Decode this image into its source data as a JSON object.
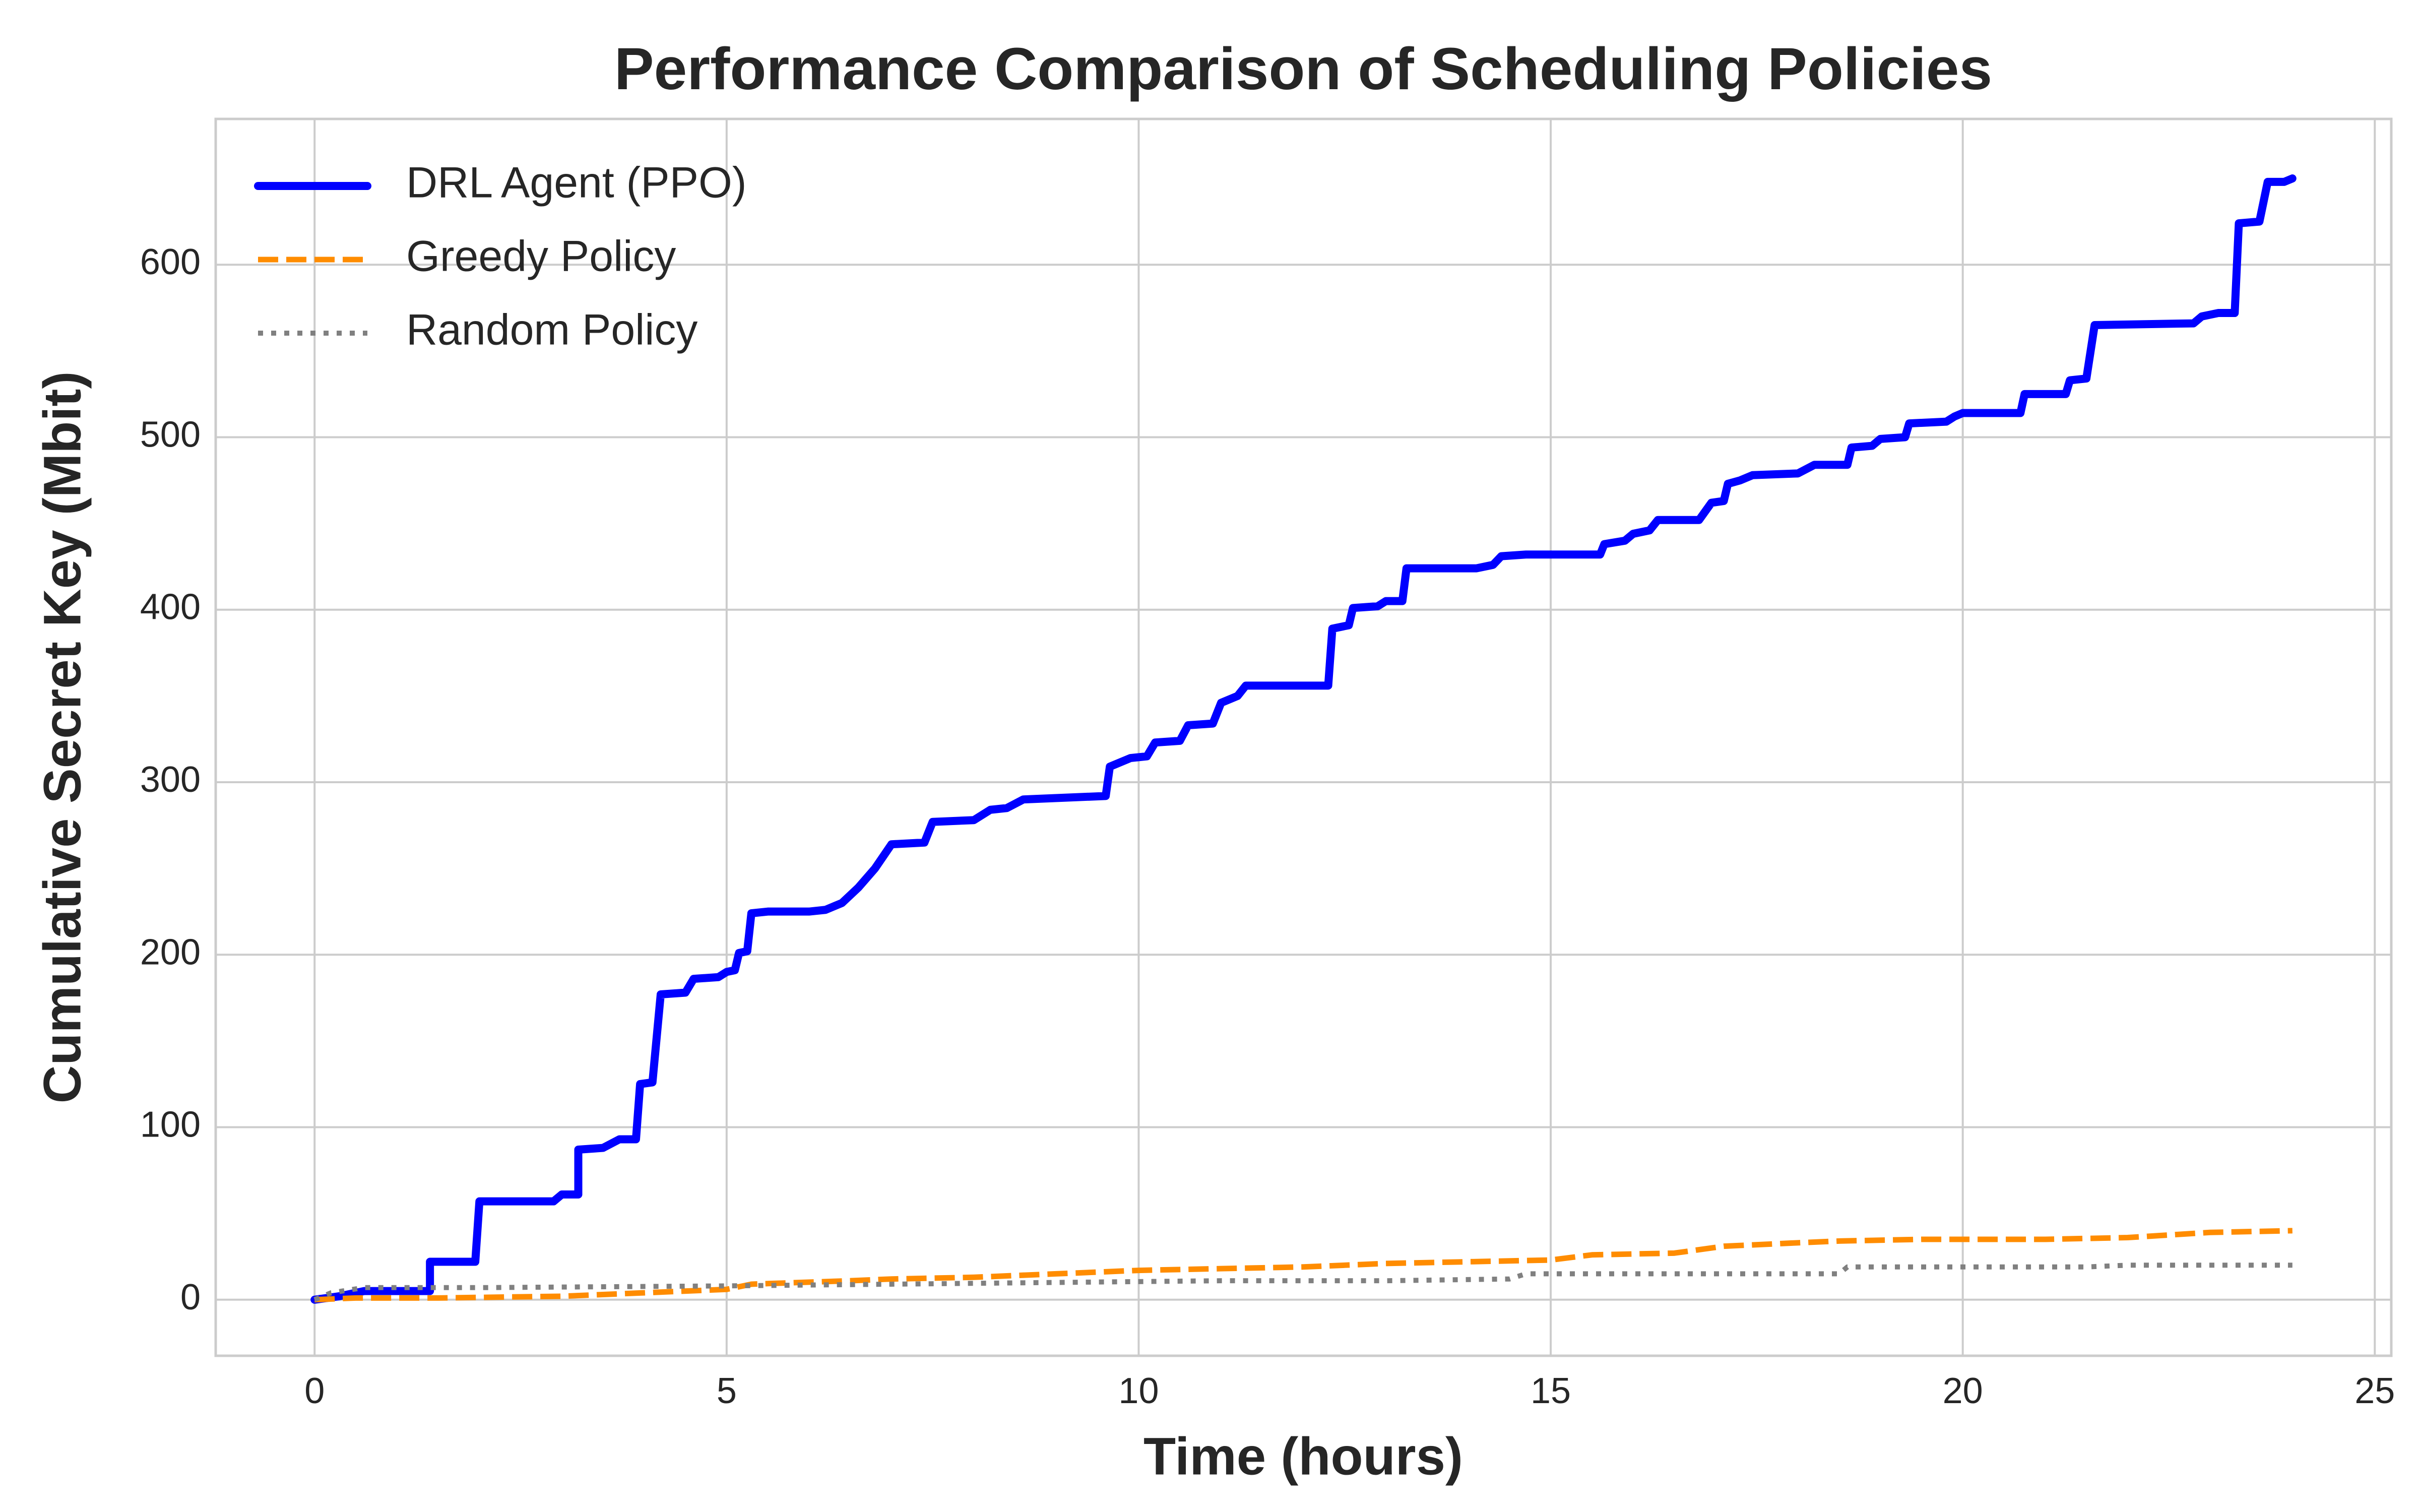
{
  "chart_data": {
    "type": "line",
    "title": "Performance Comparison of Scheduling Policies",
    "x_label": "Time (hours)",
    "y_label": "Cumulative Secret Key (Mbit)",
    "xlim": [
      -1.2,
      25.2
    ],
    "ylim": [
      -32.5,
      684.5
    ],
    "xticks": [
      0,
      5,
      10,
      15,
      20,
      25
    ],
    "yticks": [
      0,
      100,
      200,
      300,
      400,
      500,
      600
    ],
    "grid": true,
    "legend": "upper left",
    "series": [
      {
        "name": "DRL Agent (PPO)",
        "color": "#0000ff",
        "style": "solid",
        "x": [
          0,
          0.3,
          0.6,
          1.4,
          1.4,
          1.95,
          2.0,
          2.9,
          3.0,
          3.2,
          3.2,
          3.5,
          3.7,
          3.9,
          3.95,
          4.1,
          4.2,
          4.5,
          4.6,
          4.9,
          5.0,
          5.1,
          5.15,
          5.25,
          5.3,
          5.5,
          6.0,
          6.2,
          6.4,
          6.6,
          6.8,
          7.0,
          7.4,
          7.5,
          8.0,
          8.2,
          8.4,
          8.6,
          9.6,
          9.65,
          9.9,
          10.1,
          10.2,
          10.5,
          10.6,
          10.9,
          11.0,
          11.2,
          11.3,
          12.3,
          12.35,
          12.55,
          12.6,
          12.9,
          13.0,
          13.2,
          13.25,
          13.5,
          14.1,
          14.3,
          14.4,
          14.7,
          15.6,
          15.65,
          15.9,
          16.0,
          16.2,
          16.3,
          16.8,
          16.95,
          17.1,
          17.15,
          17.3,
          17.45,
          18.0,
          18.2,
          18.6,
          18.65,
          18.9,
          19.0,
          19.3,
          19.35,
          19.8,
          19.9,
          20.0,
          20.7,
          20.75,
          21.25,
          21.3,
          21.5,
          21.6,
          22.8,
          22.9,
          23.1,
          23.3,
          23.35,
          23.6,
          23.7,
          23.9,
          24.0
        ],
        "values": [
          0,
          2,
          5,
          5,
          22,
          22,
          57,
          57,
          61,
          61,
          87,
          88,
          93,
          93,
          125,
          126,
          177,
          178,
          186,
          187,
          190,
          191,
          201,
          202,
          224,
          225,
          225,
          226,
          230,
          239,
          250,
          264,
          265,
          277,
          278,
          284,
          285,
          290,
          292,
          309,
          314,
          315,
          323,
          324,
          333,
          334,
          346,
          350,
          356,
          356,
          389,
          391,
          401,
          402,
          405,
          405,
          424,
          424,
          424,
          426,
          431,
          432,
          432,
          438,
          440,
          444,
          446,
          452,
          452,
          462,
          463,
          473,
          475,
          478,
          479,
          484,
          484,
          494,
          495,
          499,
          500,
          508,
          509,
          512,
          514,
          514,
          525,
          525,
          533,
          534,
          565,
          566,
          570,
          572,
          572,
          624,
          625,
          648,
          648,
          650
        ]
      },
      {
        "name": "Greedy Policy",
        "color": "#ff8c00",
        "style": "dashed",
        "x": [
          0,
          0.5,
          1.5,
          3.0,
          4.0,
          5.0,
          5.3,
          6.5,
          7.0,
          8.0,
          9.0,
          10.0,
          11.0,
          12.0,
          12.5,
          13.0,
          14.0,
          15.0,
          15.5,
          16.5,
          17.1,
          18.0,
          18.5,
          19.5,
          21.0,
          22.0,
          23.0,
          24.0
        ],
        "values": [
          0,
          1,
          1,
          2,
          4,
          6,
          9,
          11,
          12,
          13,
          15,
          17,
          18,
          19,
          20,
          21,
          22,
          23,
          26,
          27,
          31,
          33,
          34,
          35,
          35,
          36,
          39,
          40
        ]
      },
      {
        "name": "Random Policy",
        "color": "#808080",
        "style": "dotted",
        "x": [
          0,
          0.2,
          0.6,
          2.0,
          5.0,
          7.0,
          9.0,
          11.0,
          13.0,
          14.5,
          14.7,
          18.5,
          18.6,
          21.5,
          22.0,
          24.0
        ],
        "values": [
          0,
          4,
          7,
          7,
          8,
          9,
          10,
          11,
          11,
          12,
          15,
          15,
          19,
          19,
          20,
          20
        ]
      }
    ]
  }
}
